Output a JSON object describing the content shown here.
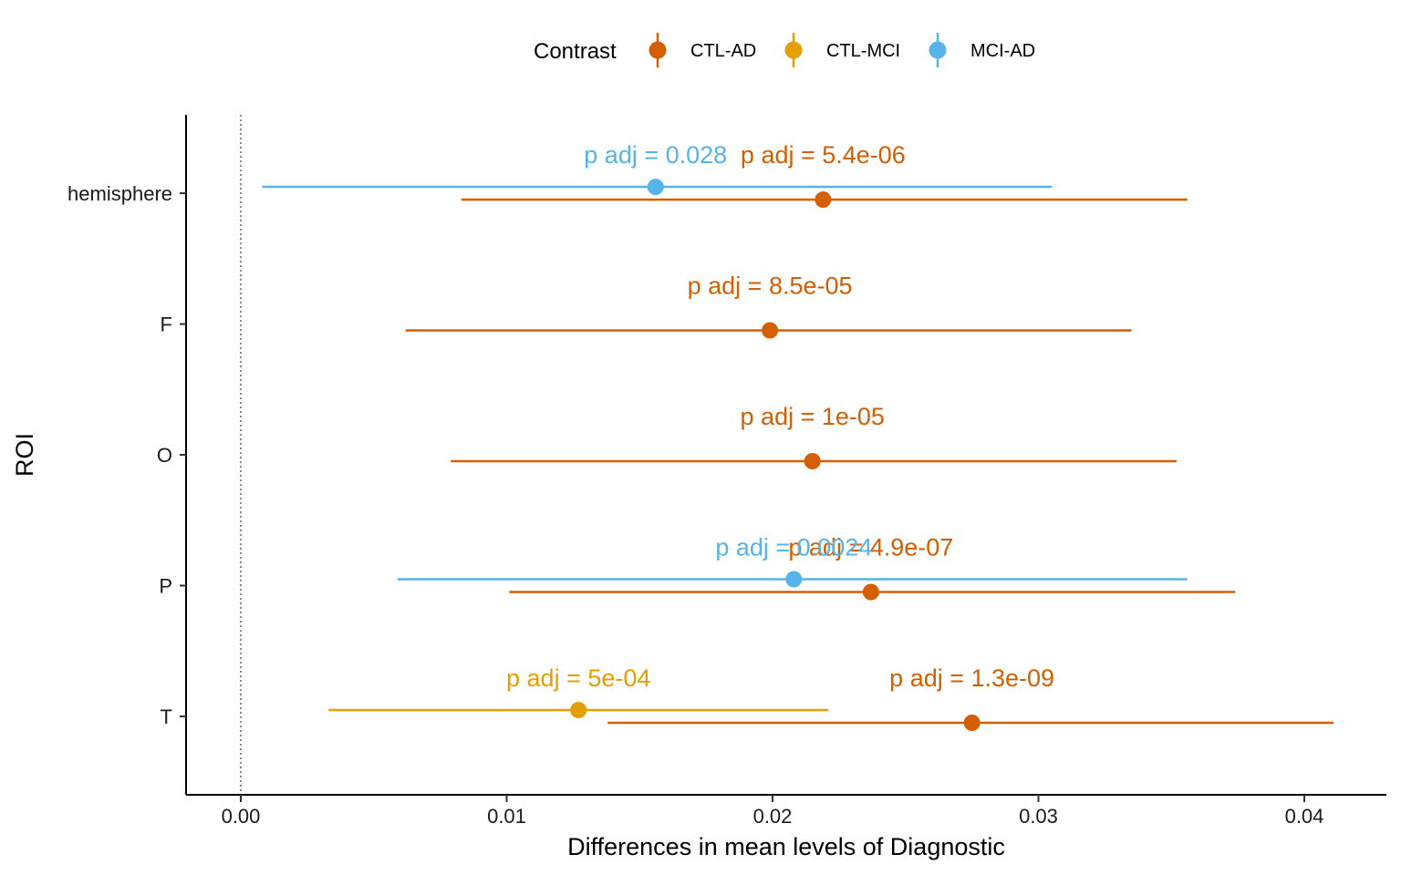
{
  "chart_data": {
    "type": "forest",
    "xlabel": "Differences in mean levels of Diagnostic",
    "ylabel": "ROI",
    "xlim": [
      -0.00205,
      0.0432
    ],
    "x_ticks": [
      0.0,
      0.01,
      0.02,
      0.03,
      0.04
    ],
    "x_tick_labels": [
      "0.00",
      "0.01",
      "0.02",
      "0.03",
      "0.04"
    ],
    "reference_line": 0,
    "categories": [
      "hemisphere",
      "F",
      "O",
      "P",
      "T"
    ],
    "legend": {
      "title": "Contrast",
      "placement": "top",
      "entries": [
        "CTL-AD",
        "CTL-MCI",
        "MCI-AD"
      ]
    },
    "colors": {
      "CTL-AD": "#d55e00",
      "CTL-MCI": "#e69f00",
      "MCI-AD": "#56b4e9"
    },
    "series": [
      {
        "name": "CTL-AD",
        "points": [
          {
            "roi": "hemisphere",
            "estimate": 0.0219,
            "lower": 0.0083,
            "upper": 0.0356,
            "label": "p adj = 5.4e-06"
          },
          {
            "roi": "F",
            "estimate": 0.0199,
            "lower": 0.0062,
            "upper": 0.0335,
            "label": "p adj = 8.5e-05"
          },
          {
            "roi": "O",
            "estimate": 0.0215,
            "lower": 0.0079,
            "upper": 0.0352,
            "label": "p adj = 1e-05"
          },
          {
            "roi": "P",
            "estimate": 0.0237,
            "lower": 0.0101,
            "upper": 0.0374,
            "label": "p adj = 4.9e-07"
          },
          {
            "roi": "T",
            "estimate": 0.0275,
            "lower": 0.0138,
            "upper": 0.0411,
            "label": "p adj = 1.3e-09"
          }
        ]
      },
      {
        "name": "CTL-MCI",
        "points": [
          {
            "roi": "T",
            "estimate": 0.0127,
            "lower": 0.0033,
            "upper": 0.0221,
            "label": "p adj = 5e-04"
          }
        ]
      },
      {
        "name": "MCI-AD",
        "points": [
          {
            "roi": "hemisphere",
            "estimate": 0.0156,
            "lower": 0.0008,
            "upper": 0.0305,
            "label": "p adj = 0.028"
          },
          {
            "roi": "P",
            "estimate": 0.0208,
            "lower": 0.0059,
            "upper": 0.0356,
            "label": "p adj = 0.0024"
          }
        ]
      }
    ]
  }
}
